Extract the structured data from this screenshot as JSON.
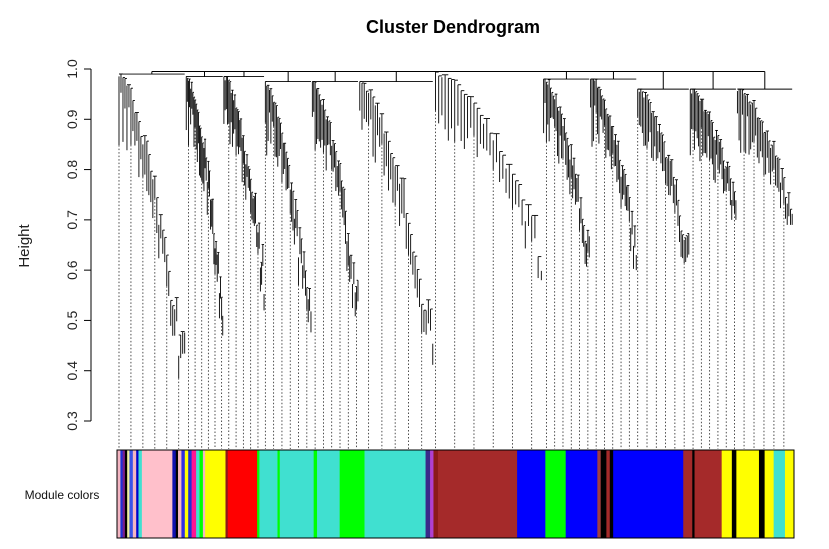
{
  "chart_data": {
    "type": "dendrogram",
    "title": "Cluster Dendrogram",
    "ylabel": "Height",
    "xlabel": "",
    "ylim": [
      0.3,
      1.0
    ],
    "yticks": [
      0.3,
      0.4,
      0.5,
      0.6,
      0.7,
      0.8,
      0.9,
      1.0
    ],
    "ytick_labels": [
      "0.3",
      "0.4",
      "0.5",
      "0.6",
      "0.7",
      "0.8",
      "0.9",
      "1.0"
    ],
    "root_height": 0.995,
    "clusters": [
      {
        "color": "pink",
        "merge_height": 0.99,
        "min_height": 0.3
      },
      {
        "color": "yellow",
        "merge_height": 0.985,
        "min_height": 0.47
      },
      {
        "color": "red",
        "merge_height": 0.985,
        "min_height": 0.52
      },
      {
        "color": "turquoise",
        "merge_height": 0.975,
        "min_height": 0.4
      },
      {
        "color": "green",
        "merge_height": 0.975,
        "min_height": 0.47
      },
      {
        "color": "turquoise",
        "merge_height": 0.975,
        "min_height": 0.4
      },
      {
        "color": "brown",
        "merge_height": 0.995,
        "min_height": 0.58
      },
      {
        "color": "blue",
        "merge_height": 0.98,
        "min_height": 0.6
      },
      {
        "color": "green",
        "merge_height": 0.98,
        "min_height": 0.6
      },
      {
        "color": "blue",
        "merge_height": 0.96,
        "min_height": 0.59
      },
      {
        "color": "brown",
        "merge_height": 0.96,
        "min_height": 0.7
      },
      {
        "color": "yellow",
        "merge_height": 0.96,
        "min_height": 0.69
      }
    ],
    "module_colors_label": "Module colors",
    "module_colors": [
      {
        "color": "#f4b6c2",
        "width": 3
      },
      {
        "color": "#1e2fd6",
        "width": 2
      },
      {
        "color": "#7a1e8c",
        "width": 2
      },
      {
        "color": "#000000",
        "width": 2
      },
      {
        "color": "#f0f0a0",
        "width": 2
      },
      {
        "color": "#3b53e8",
        "width": 3
      },
      {
        "color": "#f4b6c2",
        "width": 3
      },
      {
        "color": "#0000cc",
        "width": 2
      },
      {
        "color": "#40e0d0",
        "width": 3
      },
      {
        "color": "#ffc0cb",
        "width": 27
      },
      {
        "color": "#1010b0",
        "width": 3
      },
      {
        "color": "#000000",
        "width": 2
      },
      {
        "color": "#f4b6c2",
        "width": 3
      },
      {
        "color": "#3030e0",
        "width": 3
      },
      {
        "color": "#ffff00",
        "width": 3
      },
      {
        "color": "#1e2fd6",
        "width": 3
      },
      {
        "color": "#ff1493",
        "width": 4
      },
      {
        "color": "#40e0d0",
        "width": 3
      },
      {
        "color": "#00ff00",
        "width": 3
      },
      {
        "color": "#f4b6c2",
        "width": 2
      },
      {
        "color": "#ffff00",
        "width": 18
      },
      {
        "color": "#8b1a1a",
        "width": 2
      },
      {
        "color": "#ff0000",
        "width": 26
      },
      {
        "color": "#00ff00",
        "width": 2
      },
      {
        "color": "#40e0d0",
        "width": 16
      },
      {
        "color": "#00ff00",
        "width": 2
      },
      {
        "color": "#40e0d0",
        "width": 30
      },
      {
        "color": "#00ff00",
        "width": 3
      },
      {
        "color": "#40e0d0",
        "width": 20
      },
      {
        "color": "#00ff00",
        "width": 22
      },
      {
        "color": "#40e0d0",
        "width": 54
      },
      {
        "color": "#3a2a8a",
        "width": 4
      },
      {
        "color": "#b040d0",
        "width": 3
      },
      {
        "color": "#8b1a1a",
        "width": 4
      },
      {
        "color": "#a52a2a",
        "width": 70
      },
      {
        "color": "#0000ff",
        "width": 25
      },
      {
        "color": "#00ff00",
        "width": 18
      },
      {
        "color": "#0000ff",
        "width": 28
      },
      {
        "color": "#a04040",
        "width": 3
      },
      {
        "color": "#000000",
        "width": 5
      },
      {
        "color": "#a52a2a",
        "width": 3
      },
      {
        "color": "#000000",
        "width": 3
      },
      {
        "color": "#0000ff",
        "width": 62
      },
      {
        "color": "#a52a2a",
        "width": 8
      },
      {
        "color": "#000000",
        "width": 2
      },
      {
        "color": "#a52a2a",
        "width": 24
      },
      {
        "color": "#ffff00",
        "width": 9
      },
      {
        "color": "#000000",
        "width": 4
      },
      {
        "color": "#ffff00",
        "width": 20
      },
      {
        "color": "#000000",
        "width": 5
      },
      {
        "color": "#ffff00",
        "width": 8
      },
      {
        "color": "#40e0d0",
        "width": 10
      },
      {
        "color": "#ffff00",
        "width": 8
      }
    ]
  }
}
